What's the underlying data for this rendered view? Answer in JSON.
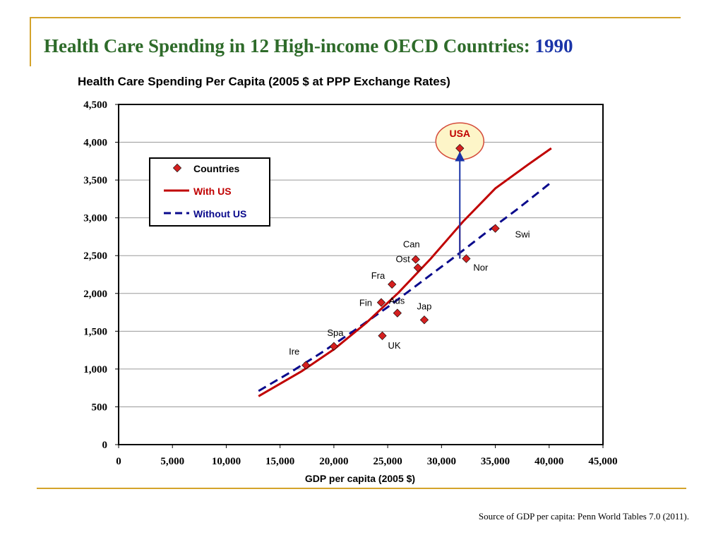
{
  "slide": {
    "title_main": "Health Care Spending in 12 High-income OECD Countries:",
    "title_year": "1990",
    "source": "Source of GDP per capita: Penn World Tables 7.0 (2011)."
  },
  "chart_data": {
    "type": "scatter",
    "title": "Health Care Spending Per Capita (2005 $ at PPP Exchange Rates)",
    "xlabel": "GDP per capita (2005 $)",
    "ylabel": "",
    "xlim": [
      0,
      45000
    ],
    "ylim": [
      0,
      4500
    ],
    "x_ticks": [
      0,
      5000,
      10000,
      15000,
      20000,
      25000,
      30000,
      35000,
      40000,
      45000
    ],
    "x_tick_labels": [
      "0",
      "5,000",
      "10,000",
      "15,000",
      "20,000",
      "25,000",
      "30,000",
      "35,000",
      "40,000",
      "45,000"
    ],
    "y_ticks": [
      0,
      500,
      1000,
      1500,
      2000,
      2500,
      3000,
      3500,
      4000,
      4500
    ],
    "y_tick_labels": [
      "0",
      "500",
      "1,000",
      "1,500",
      "2,000",
      "2,500",
      "3,000",
      "3,500",
      "4,000",
      "4,500"
    ],
    "grid": "horizontal",
    "legend_position": "top-left",
    "legend": [
      "Countries",
      "With US",
      "Without US"
    ],
    "colors": {
      "points": "#d42020",
      "with_us": "#c00000",
      "without_us": "#0a0a8c",
      "usa_highlight_fill": "#fdf5c8",
      "usa_highlight_stroke": "#d44a3a",
      "gridline": "#9a9a9a"
    },
    "series": [
      {
        "name": "Countries",
        "kind": "points",
        "points": [
          {
            "label": "Ire",
            "x": 17400,
            "y": 1050
          },
          {
            "label": "Spa",
            "x": 20000,
            "y": 1300
          },
          {
            "label": "UK",
            "x": 24500,
            "y": 1440
          },
          {
            "label": "Fin",
            "x": 24400,
            "y": 1880
          },
          {
            "label": "Aus",
            "x": 25900,
            "y": 1740
          },
          {
            "label": "Fra",
            "x": 25400,
            "y": 2120
          },
          {
            "label": "Can",
            "x": 27600,
            "y": 2450
          },
          {
            "label": "Ost",
            "x": 27800,
            "y": 2340
          },
          {
            "label": "Jap",
            "x": 28400,
            "y": 1650
          },
          {
            "label": "Nor",
            "x": 32300,
            "y": 2460
          },
          {
            "label": "Swi",
            "x": 35000,
            "y": 2860
          },
          {
            "label": "USA",
            "x": 31700,
            "y": 3920
          }
        ]
      },
      {
        "name": "With US",
        "kind": "line",
        "x": [
          13000,
          17000,
          20000,
          23000,
          26000,
          29000,
          32000,
          35000,
          38000,
          40200
        ],
        "y": [
          640,
          970,
          1260,
          1610,
          2010,
          2460,
          2950,
          3390,
          3700,
          3920
        ]
      },
      {
        "name": "Without US",
        "kind": "dashed-line",
        "x": [
          13000,
          16000,
          19000,
          22000,
          25000,
          28000,
          31000,
          34000,
          37000,
          40200
        ],
        "y": [
          710,
          960,
          1230,
          1520,
          1820,
          2140,
          2460,
          2790,
          3110,
          3470
        ]
      }
    ],
    "annotations": [
      {
        "label": "USA",
        "type": "highlight-ellipse"
      },
      {
        "type": "arrow",
        "x": 31700,
        "from_y": 2460,
        "to_y": 3920,
        "color": "#1a34a8"
      },
      {
        "type": "segment",
        "x": 31700,
        "from_y": 2460,
        "to_y": 2950,
        "color": "#c00000"
      }
    ]
  }
}
